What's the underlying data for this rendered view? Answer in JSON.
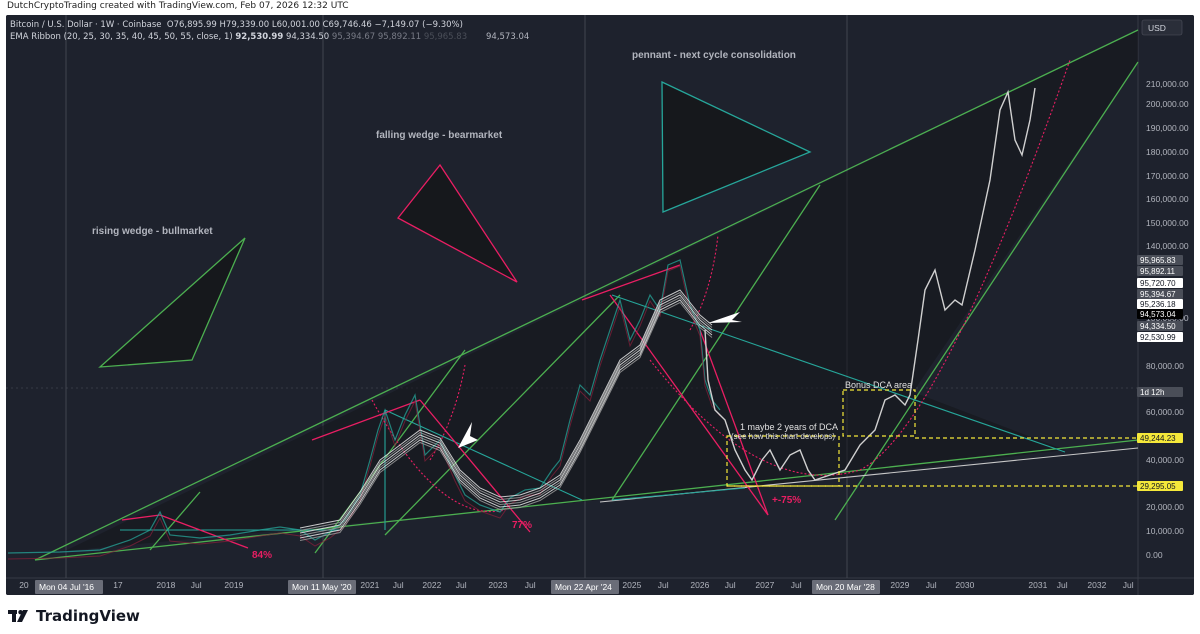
{
  "header": {
    "credit": "DutchCryptoTrading created with TradingView.com, Feb 07, 2026 12:32 UTC"
  },
  "legend": {
    "symbol": "Bitcoin / U.S. Dollar · 1W · Coinbase",
    "ohlc": "O76,895.99  H79,339.00  L60,001.00  C69,746.46  −7,149.07 (−9.30%)",
    "ema_label": "EMA Ribbon (20, 25, 30, 35, 40, 45, 50, 55, close, 1)",
    "ema_values": [
      "92,530.99",
      "94,334.50",
      "95,394.67",
      "95,892.11",
      "95,965.83"
    ],
    "ema_overflow": "94,573.04"
  },
  "currency_button": "USD",
  "chart_data": {
    "type": "line",
    "y_axis": {
      "ticks": [
        "210,000.00",
        "200,000.00",
        "190,000.00",
        "180,000.00",
        "170,000.00",
        "160,000.00",
        "150,000.00",
        "140,000.00",
        "130,000.00",
        "80,000.00",
        "60,000.00",
        "40,000.00",
        "20,000.00",
        "10,000.00",
        "0.00"
      ],
      "price_tags": [
        {
          "text": "95,965.83",
          "color": "#4a4e58"
        },
        {
          "text": "95,892.11",
          "color": "#4a4e58"
        },
        {
          "text": "95,720.70",
          "color": "#ffffff"
        },
        {
          "text": "95,394.67",
          "color": "#4a4e58"
        },
        {
          "text": "95,236.18",
          "color": "#ffffff"
        },
        {
          "text": "94,573.04",
          "color": "#000000"
        },
        {
          "text": "94,334.50",
          "color": "#4a4e58"
        },
        {
          "text": "92,530.99",
          "color": "#ffffff"
        },
        {
          "text": "1d 12h",
          "color": "#4a4e58"
        },
        {
          "text": "49,244.23",
          "color": "#f5e83a"
        },
        {
          "text": "29,295.05",
          "color": "#f5e83a"
        }
      ]
    },
    "x_axis": {
      "ticks": [
        "20",
        "17",
        "2018",
        "Jul",
        "2019",
        "2021",
        "Jul",
        "2022",
        "Jul",
        "2023",
        "Jul",
        "2025",
        "Jul",
        "2026",
        "Jul",
        "2027",
        "Jul",
        "2029",
        "Jul",
        "2030",
        "2031",
        "Jul",
        "2032",
        "Jul"
      ],
      "date_tags": [
        "Mon 04 Jul '16",
        "Mon 11 May '20",
        "Mon 22 Apr '24",
        "Mon 20 Mar '28"
      ]
    },
    "annotations": {
      "rising_wedge": "rising wedge - bullmarket",
      "falling_wedge": "falling wedge - bearmarket",
      "pennant": "pennant - next cycle consolidation",
      "dca_line1": "1 maybe 2 years of DCA",
      "dca_line2": "(see how this chart develops)",
      "bonus_dca": "Bonus DCA area",
      "drawdowns": [
        "84%",
        "77%",
        "+-75%"
      ]
    },
    "colors": {
      "background": "#1e222d",
      "wedge_green": "#4caf50",
      "bear_red": "#e91e63",
      "teal": "#26a69a",
      "dca_yellow": "#f5e83a"
    }
  },
  "footer": {
    "brand": "TradingView"
  }
}
